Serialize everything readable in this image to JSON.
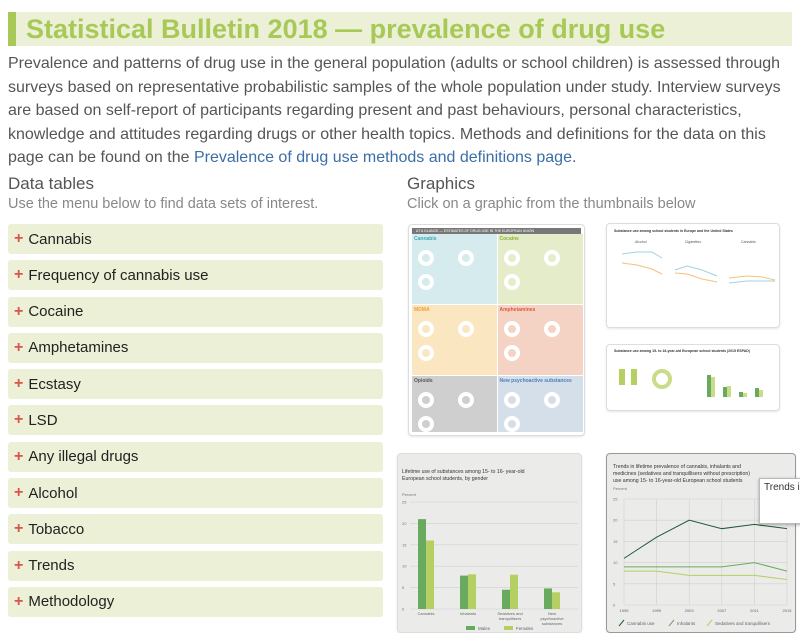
{
  "title": "Statistical Bulletin 2018 — prevalence of drug use",
  "intro": {
    "text": "Prevalence and patterns of drug use in the general population (adults or school children) is assessed through surveys based on representative probabilistic samples of the whole population under study. Interview surveys are based on self-report of participants regarding present and past behaviours, personal characteristics, knowledge and attitudes regarding drugs or other health topics. Methods and definitions for the data on this page can be found on the ",
    "link": "Prevalence of drug use methods and definitions page",
    "end": "."
  },
  "data_tables": {
    "heading": "Data tables",
    "subtitle": "Use the menu below to find data sets of interest.",
    "items": [
      "Cannabis",
      "Frequency of cannabis use",
      "Cocaine",
      "Amphetamines",
      "Ecstasy",
      "LSD",
      "Any illegal drugs",
      "Alcohol",
      "Tobacco",
      "Trends",
      "Methodology"
    ]
  },
  "graphics": {
    "heading": "Graphics",
    "subtitle": "Click on a graphic from the thumbnails below",
    "infographic": {
      "header": "AT A GLANCE — ESTIMATES OF DRUG USE IN THE EUROPEAN UNION",
      "tiles": [
        {
          "name": "Cannabis",
          "color": "#d6ebee",
          "text": "#3aa9b5"
        },
        {
          "name": "Cocaine",
          "color": "#e4ecc9",
          "text": "#8db33a"
        },
        {
          "name": "MDMA",
          "color": "#fbe6c2",
          "text": "#f0a030"
        },
        {
          "name": "Amphetamines",
          "color": "#f4d3c4",
          "text": "#d95b3a"
        },
        {
          "name": "Opioids",
          "color": "#cfcfcf",
          "text": "#555555"
        },
        {
          "name": "New psychoactive substances",
          "color": "#d4dfea",
          "text": "#4a7fbf"
        }
      ]
    },
    "thumb_line_title": "Substance use among school students in Europe and the United States",
    "thumb_line_panels": [
      "Alcohol",
      "Cigarettes",
      "Cannabis"
    ],
    "thumb_espad_title": "Substance use among 15- to 16-year-old European school students (2015 ESPAD)"
  },
  "colors": {
    "accent": "#a8c957",
    "males": "#6aaa5e",
    "females": "#b5cf63",
    "cannabis": "#1f5a3a",
    "inhalants": "#6aaa5e",
    "sedatives": "#b5cf63"
  },
  "chart_data": [
    {
      "type": "bar",
      "title": "Lifetime use of substances among 15- to 16- year-old European school students, by gender",
      "ylabel": "Percent",
      "ylim": [
        0,
        25
      ],
      "yticks": [
        0,
        5,
        10,
        15,
        20,
        25
      ],
      "categories": [
        "Cannabis",
        "Inhalants",
        "Sedatives and tranquillisers",
        "New psychoactive substances"
      ],
      "series": [
        {
          "name": "Males",
          "values": [
            21,
            7.8,
            4.5,
            4.8
          ]
        },
        {
          "name": "Females",
          "values": [
            16,
            8.1,
            8,
            3.9
          ]
        }
      ],
      "grid": true,
      "legend": "bottom"
    },
    {
      "type": "line",
      "title": "Trends in lifetime prevalence of cannabis, inhalants and medicines (sedatives and tranquillisers without prescription) use among 15- to 16-year-old European school students",
      "ylabel": "Percent",
      "ylim": [
        0,
        25
      ],
      "yticks": [
        0,
        5,
        10,
        15,
        20,
        25
      ],
      "x": [
        1995,
        1999,
        2003,
        2007,
        2011,
        2015
      ],
      "series": [
        {
          "name": "Cannabis use",
          "values": [
            11,
            16,
            20,
            18,
            19,
            18
          ]
        },
        {
          "name": "Inhalants",
          "values": [
            9,
            9,
            9,
            9,
            10,
            8
          ]
        },
        {
          "name": "Sedatives and tranquillisers",
          "values": [
            8,
            8,
            7,
            7,
            7,
            6
          ]
        }
      ],
      "grid": true,
      "legend": "bottom"
    }
  ],
  "tooltip": "Trends in lifetime prevalence of cannabis, inhalants and medicines (sedatives and tranquillisers without prescription) use among 15- to 16-year-old European school students"
}
